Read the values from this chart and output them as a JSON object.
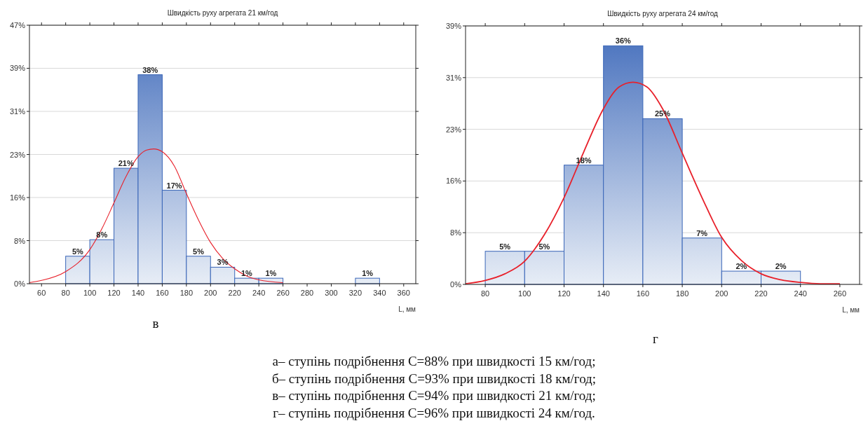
{
  "chart_data": [
    {
      "type": "histogram",
      "title": "Швидкість руху агрегата 21 км/год",
      "xlabel": "L, мм",
      "color": "#3a66b8",
      "grid": "y",
      "bins": [
        80,
        100,
        120,
        140,
        160,
        180,
        200,
        220,
        240,
        260,
        280,
        300,
        320,
        340
      ],
      "values": [
        5,
        8,
        21,
        38,
        17,
        5,
        3,
        1,
        1,
        null,
        null,
        null,
        1
      ],
      "value_labels": [
        "5%",
        "8%",
        "21%",
        "38%",
        "17%",
        "5%",
        "3%",
        "1%",
        "1%",
        null,
        null,
        null,
        "1%"
      ],
      "xlim": [
        50,
        370
      ],
      "xticks": [
        60,
        80,
        100,
        120,
        140,
        160,
        180,
        200,
        220,
        240,
        260,
        280,
        300,
        320,
        340,
        360
      ],
      "ylim": [
        0,
        47
      ],
      "yticks": [
        {
          "value": 0,
          "label": "0%"
        },
        {
          "value": 7.83,
          "label": "8%"
        },
        {
          "value": 15.67,
          "label": "16%"
        },
        {
          "value": 23.5,
          "label": "23%"
        },
        {
          "value": 31.33,
          "label": "31%"
        },
        {
          "value": 39.17,
          "label": "39%"
        },
        {
          "value": 47,
          "label": "47%"
        }
      ],
      "series": [
        {
          "type": "line",
          "color": "#e8202a",
          "x": [
            50,
            60,
            80,
            100,
            110,
            120,
            130,
            140,
            147,
            153,
            160,
            170,
            180,
            190,
            200,
            210,
            220,
            230,
            240,
            260
          ],
          "values": [
            0.2,
            0.6,
            2.2,
            6.2,
            10,
            14.7,
            19.5,
            23.1,
            24.3,
            24.5,
            24,
            21.4,
            16.4,
            11.6,
            7.5,
            4.6,
            2.7,
            1.4,
            0.7,
            0.2
          ]
        }
      ],
      "annotations": [
        "в"
      ]
    },
    {
      "type": "histogram",
      "title": "Швидкість руху агрегата 24 км/год",
      "xlabel": "L, мм",
      "color": "#3a66b8",
      "grid": "y",
      "bins": [
        80,
        100,
        120,
        140,
        160,
        180,
        200,
        220,
        240
      ],
      "values": [
        5,
        5,
        18,
        36,
        25,
        7,
        2,
        2
      ],
      "value_labels": [
        "5%",
        "5%",
        "18%",
        "36%",
        "25%",
        "7%",
        "2%",
        "2%"
      ],
      "xlim": [
        70,
        270
      ],
      "xticks": [
        80,
        100,
        120,
        140,
        160,
        180,
        200,
        220,
        240,
        260
      ],
      "ylim": [
        0,
        39
      ],
      "yticks": [
        {
          "value": 0,
          "label": "0%"
        },
        {
          "value": 7.8,
          "label": "8%"
        },
        {
          "value": 15.6,
          "label": "16%"
        },
        {
          "value": 23.4,
          "label": "23%"
        },
        {
          "value": 31.2,
          "label": "31%"
        },
        {
          "value": 39,
          "label": "39%"
        }
      ],
      "series": [
        {
          "type": "line",
          "color": "#e8202a",
          "x": [
            70,
            80,
            90,
            100,
            110,
            120,
            130,
            140,
            148,
            155,
            162,
            170,
            180,
            190,
            200,
            210,
            220,
            230,
            240,
            250,
            260
          ],
          "values": [
            0.1,
            0.6,
            1.6,
            3.5,
            7.5,
            13.1,
            20,
            26.5,
            29.8,
            30.5,
            29.8,
            26.5,
            19.8,
            13.1,
            7.1,
            3.6,
            1.6,
            0.7,
            0.3,
            0.1,
            0.1
          ]
        }
      ],
      "annotations": [
        "г"
      ]
    },
    {
      "type": "other",
      "annotations": [
        "а– ступінь подрібнення С=88% при швидкості 15 км/год;",
        "б– ступінь подрібнення С=93% при швидкості 18 км/год;",
        "в– ступінь подрібнення С=94% при швидкості 21 км/год;",
        "г– ступінь подрібнення С=96% при швидкості 24 км/год."
      ]
    }
  ]
}
